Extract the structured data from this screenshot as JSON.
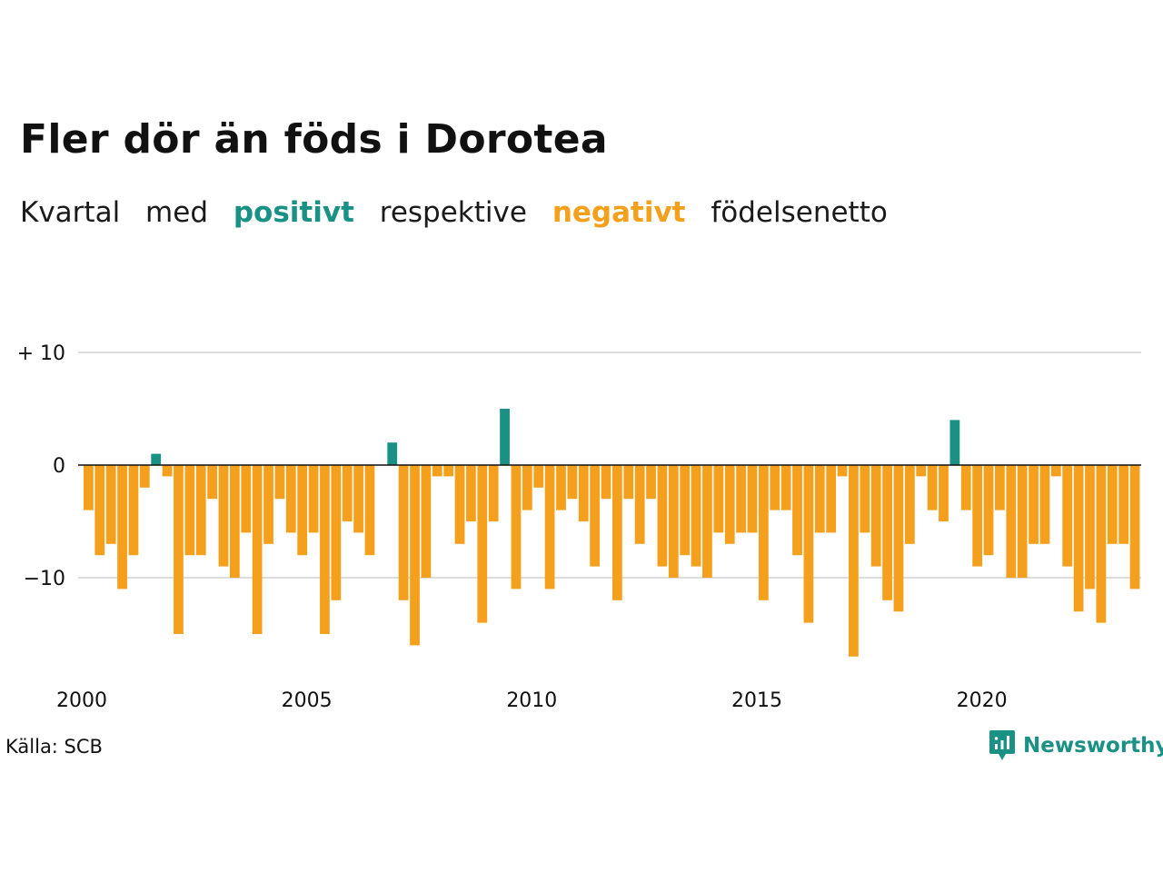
{
  "title": "Fler dör än föds i Dorotea",
  "subtitle": {
    "w1": "Kvartal",
    "w2": "med",
    "positive_word": "positivt",
    "w3": "respektive",
    "negative_word": "negativt",
    "w4": "födelsenetto"
  },
  "colors": {
    "positive": "#1a9185",
    "negative": "#f5a01d",
    "grid": "#dddddd",
    "zero": "#111111"
  },
  "source": "Källa: SCB",
  "brand": {
    "name": "Newsworthy",
    "icon": "newsworthy-logo-icon"
  },
  "chart_data": {
    "type": "bar",
    "title": "Fler dör än föds i Dorotea",
    "xlabel": "",
    "ylabel": "",
    "ylim": [
      -18,
      11
    ],
    "yticks": [
      {
        "value": 10,
        "label": "+ 10"
      },
      {
        "value": 0,
        "label": "0"
      },
      {
        "value": -10,
        "label": "−10"
      }
    ],
    "xticks": [
      {
        "label": "2000",
        "index": 0
      },
      {
        "label": "2005",
        "index": 20
      },
      {
        "label": "2010",
        "index": 40
      },
      {
        "label": "2015",
        "index": 60
      },
      {
        "label": "2020",
        "index": 80
      }
    ],
    "grid": true,
    "start_period": "2000 Q1",
    "values": [
      -4,
      -8,
      -7,
      -11,
      -8,
      -2,
      1,
      -1,
      -15,
      -8,
      -8,
      -3,
      -9,
      -10,
      -6,
      -15,
      -7,
      -3,
      -6,
      -8,
      -6,
      -15,
      -12,
      -5,
      -6,
      -8,
      0,
      2,
      -12,
      -16,
      -10,
      -1,
      -1,
      -7,
      -5,
      -14,
      -5,
      5,
      -11,
      -4,
      -2,
      -11,
      -4,
      -3,
      -5,
      -9,
      -3,
      -12,
      -3,
      -7,
      -3,
      -9,
      -10,
      -8,
      -9,
      -10,
      -6,
      -7,
      -6,
      -6,
      -12,
      -4,
      -4,
      -8,
      -14,
      -6,
      -6,
      -1,
      -17,
      -6,
      -9,
      -12,
      -13,
      -7,
      -1,
      -4,
      -5,
      4,
      -4,
      -9,
      -8,
      -4,
      -10,
      -10,
      -7,
      -7,
      -1,
      -9,
      -13,
      -11,
      -14,
      -7,
      -7,
      -11
    ]
  }
}
